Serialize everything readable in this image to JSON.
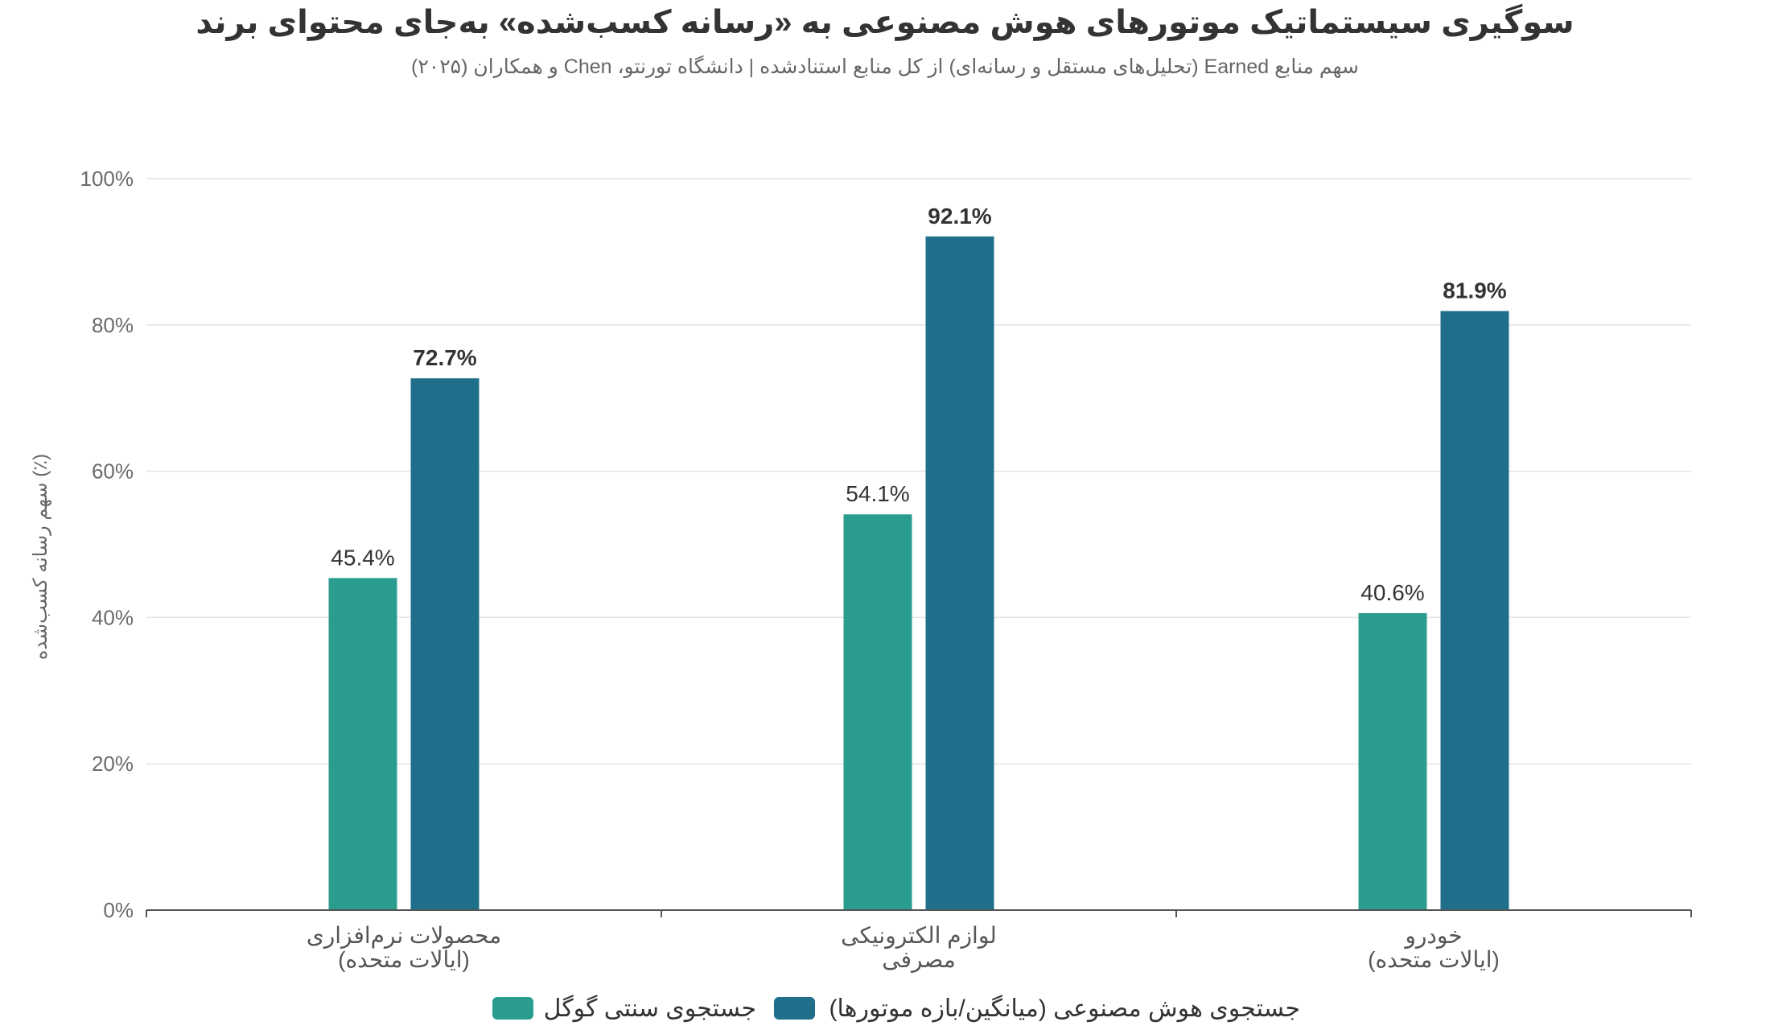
{
  "chart_data": {
    "type": "bar",
    "title": "سوگیری سیستماتیک موتورهای هوش مصنوعی به «رسانه کسب‌شده» به‌جای محتوای برند",
    "subtitle": "سهم منابع Earned (تحلیل‌های مستقل و رسانه‌ای) از کل منابع استنادشده | دانشگاه تورنتو، Chen و همکاران (۲۰۲۵)",
    "ylabel": "سهم رسانه کسب‌شده (٪)",
    "xlabel": "",
    "ylim": [
      0,
      100
    ],
    "yticks": [
      "0%",
      "20%",
      "40%",
      "60%",
      "80%",
      "100%"
    ],
    "ytick_values": [
      0,
      20,
      40,
      60,
      80,
      100
    ],
    "grid": true,
    "legend_position": "bottom-center",
    "categories": [
      [
        "محصولات نرم‌افزاری",
        "(ایالات متحده)"
      ],
      [
        "لوازم الکترونیکی",
        "مصرفی"
      ],
      [
        "خودرو",
        "(ایالات متحده)"
      ]
    ],
    "series": [
      {
        "name": "جستجوی سنتی گوگل",
        "color": "#2a9d8f",
        "values": [
          45.4,
          54.1,
          40.6
        ],
        "labels": [
          "45.4%",
          "54.1%",
          "40.6%"
        ],
        "label_bold": false
      },
      {
        "name": "جستجوی هوش مصنوعی (میانگین/بازه موتورها)",
        "color": "#1f6f8b",
        "values": [
          72.7,
          92.1,
          81.9
        ],
        "labels": [
          "72.7%",
          "92.1%",
          "81.9%"
        ],
        "label_bold": true
      }
    ]
  }
}
